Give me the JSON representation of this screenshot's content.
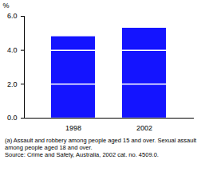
{
  "chart_data": {
    "type": "bar",
    "categories": [
      "1998",
      "2002"
    ],
    "values": [
      4.8,
      5.3
    ],
    "color": "#1414ff",
    "y_label": "%",
    "ylim": [
      0,
      6
    ],
    "yticks": [
      0,
      2,
      4,
      6
    ],
    "grid": true,
    "annotations": [
      "(a) Assault and robbery among people aged 15 and over. Sexual assault among people aged 18 and over.",
      "Source: Crime and Safety, Australia, 2002 cat. no. 4509.0."
    ]
  }
}
